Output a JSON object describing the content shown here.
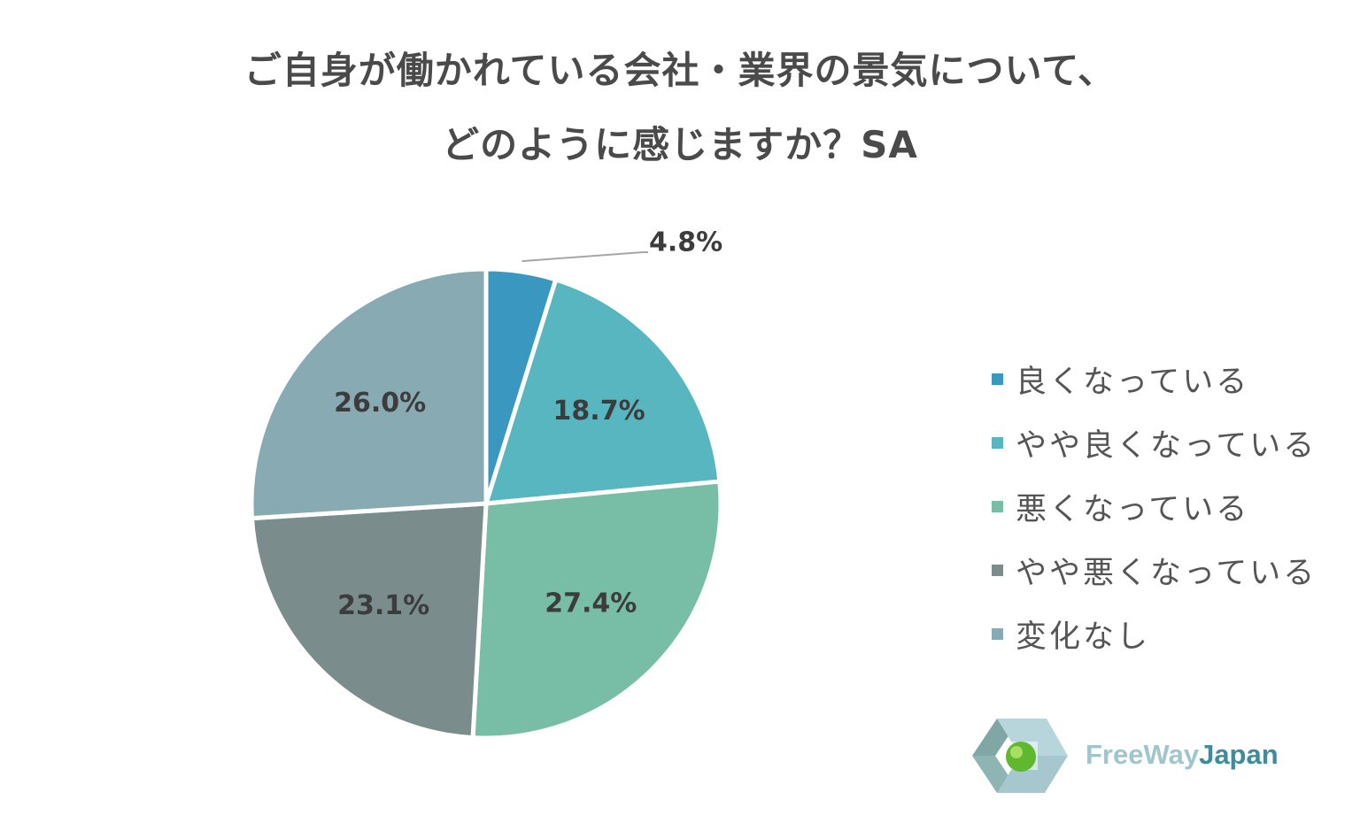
{
  "title": {
    "line1": "ご自身が働かれている会社・業界の景気について、",
    "line2": "どのように感じますか？SA"
  },
  "chart_data": {
    "type": "pie",
    "categories": [
      "良くなっている",
      "やや良くなっている",
      "悪くなっている",
      "やや悪くなっている",
      "変化なし"
    ],
    "values": [
      4.8,
      18.7,
      27.4,
      23.1,
      26.0
    ],
    "labels": [
      "4.8%",
      "18.7%",
      "27.4%",
      "23.1%",
      "26.0%"
    ],
    "colors": [
      "#3a97bf",
      "#58b6c0",
      "#78bea7",
      "#7a8c8c",
      "#87aab3"
    ],
    "unit": "%",
    "legend": "right",
    "start": "12 o'clock, clockwise"
  },
  "legend": {
    "items": [
      {
        "label": "良くなっている",
        "color": "#3a97bf"
      },
      {
        "label": "やや良くなっている",
        "color": "#58b6c0"
      },
      {
        "label": "悪くなっている",
        "color": "#78bea7"
      },
      {
        "label": "やや悪くなっている",
        "color": "#7a8c8c"
      },
      {
        "label": "変化なし",
        "color": "#87aab3"
      }
    ]
  },
  "logo": {
    "text_part1": "FreeWay",
    "text_part2": "Japan",
    "icon": "freewayjapan-logo-icon"
  }
}
